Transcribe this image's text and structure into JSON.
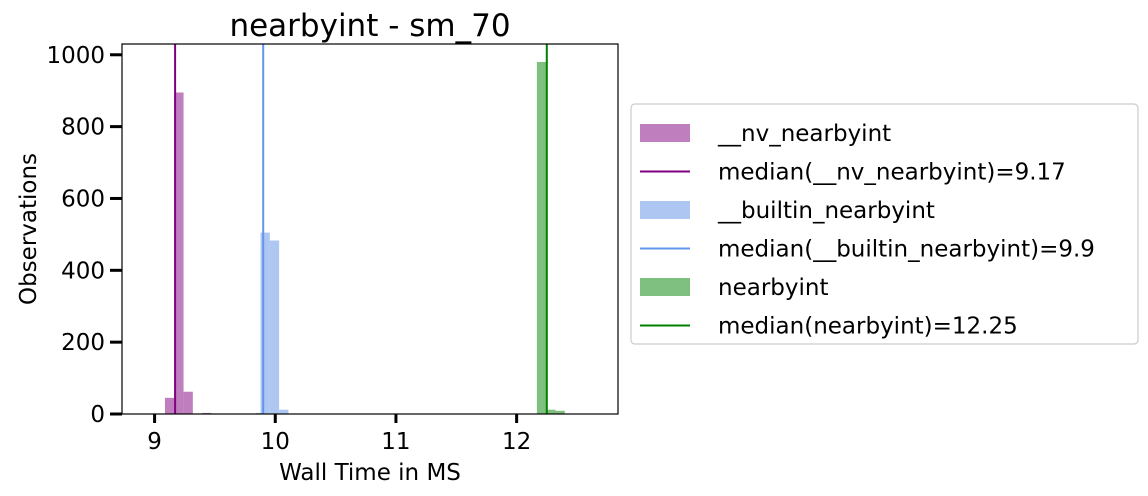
{
  "chart_data": {
    "type": "histogram",
    "title": "nearbyint - sm_70",
    "xlabel": "Wall Time in MS",
    "ylabel": "Observations",
    "xlim": [
      8.73,
      12.84
    ],
    "ylim": [
      0,
      1030
    ],
    "xticks": [
      9,
      10,
      11,
      12
    ],
    "yticks": [
      0,
      200,
      400,
      600,
      800,
      1000
    ],
    "grid": false,
    "legend_position": "outside-right",
    "bin_width": 0.077,
    "series": [
      {
        "name": "__nv_nearbyint",
        "color": "#bf7fbf",
        "bins": [
          {
            "x": 9.086,
            "value": 45
          },
          {
            "x": 9.163,
            "value": 895
          },
          {
            "x": 9.24,
            "value": 62
          },
          {
            "x": 9.394,
            "value": 3
          }
        ],
        "median_label": "median(__nv_nearbyint)=9.17",
        "median": 9.17,
        "median_color": "#800080"
      },
      {
        "name": "__builtin_nearbyint",
        "color": "#aec7f2",
        "bins": [
          {
            "x": 9.84,
            "value": 3
          },
          {
            "x": 9.878,
            "value": 505
          },
          {
            "x": 9.955,
            "value": 483
          },
          {
            "x": 10.032,
            "value": 12
          }
        ],
        "median_label": "median(__builtin_nearbyint)=9.9",
        "median": 9.9,
        "median_color": "#6495ed"
      },
      {
        "name": "nearbyint",
        "color": "#7fbf7f",
        "bins": [
          {
            "x": 12.168,
            "value": 980
          },
          {
            "x": 12.245,
            "value": 12
          },
          {
            "x": 12.322,
            "value": 9
          }
        ],
        "median_label": "median(nearbyint)=12.25",
        "median": 12.25,
        "median_color": "#008000"
      }
    ]
  }
}
